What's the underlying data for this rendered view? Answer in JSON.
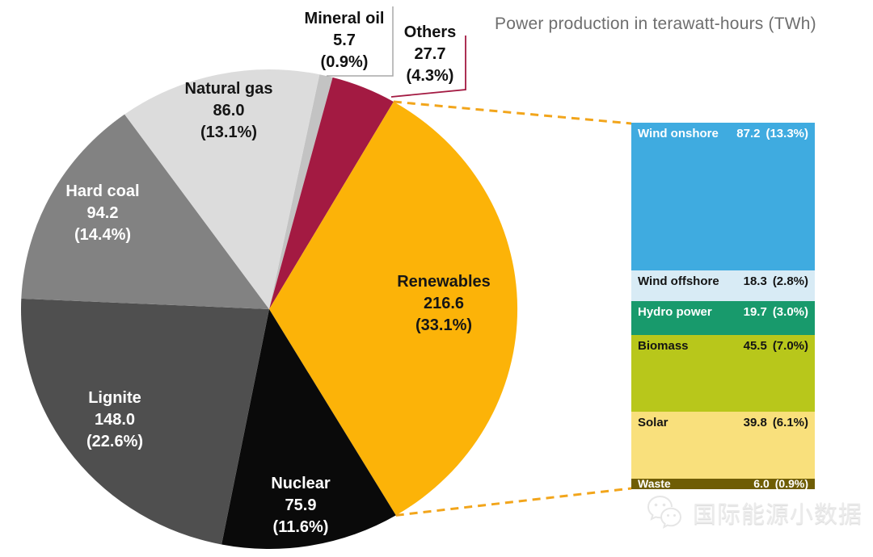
{
  "title": "Power production in terawatt-hours (TWh)",
  "watermark": {
    "text": "国际能源小数据",
    "logo": "wechat-logo"
  },
  "connector": {
    "color": "#f2a51b",
    "style": "dashed"
  },
  "leader_lines": {
    "mineral_oil_color": "#a9a9a9",
    "others_color": "#a31a42"
  },
  "chart_data": [
    {
      "type": "pie",
      "title": "Power production in terawatt-hours (TWh)",
      "units": "TWh",
      "start_angle_deg": 11.7,
      "slices": [
        {
          "label": "Mineral oil",
          "value": 5.7,
          "value_display": "5.7",
          "pct": 0.9,
          "pct_display": "(0.9%)",
          "color": "#c3c3c3",
          "label_color": "#111111",
          "label_placement": "outside"
        },
        {
          "label": "Others",
          "value": 27.7,
          "value_display": "27.7",
          "pct": 4.3,
          "pct_display": "(4.3%)",
          "color": "#a31a42",
          "label_color": "#111111",
          "label_placement": "outside"
        },
        {
          "label": "Renewables",
          "value": 216.6,
          "value_display": "216.6",
          "pct": 33.1,
          "pct_display": "(33.1%)",
          "color": "#fcb308",
          "label_color": "#161616",
          "label_placement": "inside"
        },
        {
          "label": "Nuclear",
          "value": 75.9,
          "value_display": "75.9",
          "pct": 11.6,
          "pct_display": "(11.6%)",
          "color": "#0a0a0a",
          "label_color": "#ffffff",
          "label_placement": "inside"
        },
        {
          "label": "Lignite",
          "value": 148.0,
          "value_display": "148.0",
          "pct": 22.6,
          "pct_display": "(22.6%)",
          "color": "#4f4f4f",
          "label_color": "#ffffff",
          "label_placement": "inside"
        },
        {
          "label": "Hard coal",
          "value": 94.2,
          "value_display": "94.2",
          "pct": 14.4,
          "pct_display": "(14.4%)",
          "color": "#828282",
          "label_color": "#ffffff",
          "label_placement": "inside"
        },
        {
          "label": "Natural gas",
          "value": 86.0,
          "value_display": "86.0",
          "pct": 13.1,
          "pct_display": "(13.1%)",
          "color": "#dcdcdc",
          "label_color": "#161616",
          "label_placement": "inside"
        }
      ]
    },
    {
      "type": "bar",
      "subtype": "stacked-breakdown",
      "parent_slice": "Renewables",
      "segments": [
        {
          "label": "Wind onshore",
          "value": 87.2,
          "value_display": "87.2",
          "pct": 13.3,
          "pct_display": "(13.3%)",
          "color": "#3fabe0",
          "label_color": "#ffffff"
        },
        {
          "label": "Wind offshore",
          "value": 18.3,
          "value_display": "18.3",
          "pct": 2.8,
          "pct_display": "(2.8%)",
          "color": "#d8ebf5",
          "label_color": "#141414"
        },
        {
          "label": "Hydro power",
          "value": 19.7,
          "value_display": "19.7",
          "pct": 3.0,
          "pct_display": "(3.0%)",
          "color": "#189a6c",
          "label_color": "#ffffff"
        },
        {
          "label": "Biomass",
          "value": 45.5,
          "value_display": "45.5",
          "pct": 7.0,
          "pct_display": "(7.0%)",
          "color": "#b8c71b",
          "label_color": "#141414"
        },
        {
          "label": "Solar",
          "value": 39.8,
          "value_display": "39.8",
          "pct": 6.1,
          "pct_display": "(6.1%)",
          "color": "#f9e07c",
          "label_color": "#141414"
        },
        {
          "label": "Waste",
          "value": 6.0,
          "value_display": "6.0",
          "pct": 0.9,
          "pct_display": "(0.9%)",
          "color": "#6f5d05",
          "label_color": "#ffffff"
        }
      ]
    }
  ]
}
